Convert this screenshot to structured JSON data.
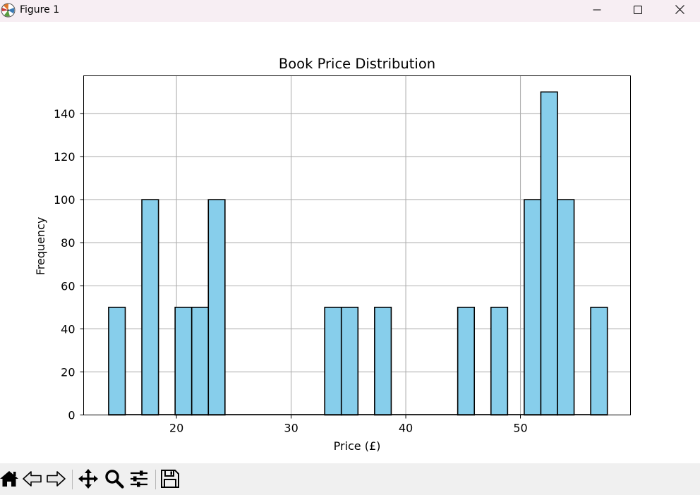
{
  "window": {
    "title": "Figure 1",
    "icons": {
      "app": "matplotlib-icon",
      "minimize": "minimize-icon",
      "maximize": "maximize-icon",
      "close": "close-icon"
    }
  },
  "toolbar": {
    "tools": [
      "home-icon",
      "back-arrow-icon",
      "forward-arrow-icon",
      "pan-icon",
      "zoom-icon",
      "configure-subplots-icon",
      "save-icon"
    ]
  },
  "chart_data": {
    "type": "bar",
    "title": "Book Price Distribution",
    "xlabel": "Price (£)",
    "ylabel": "Frequency",
    "xlim": [
      11.9,
      59.6
    ],
    "ylim": [
      0,
      157.5
    ],
    "xticks": [
      20,
      30,
      40,
      50
    ],
    "yticks": [
      0,
      20,
      40,
      60,
      80,
      100,
      120,
      140
    ],
    "bin_edges": [
      14.08,
      15.53,
      16.98,
      18.43,
      19.88,
      21.33,
      22.78,
      24.23,
      25.68,
      27.13,
      28.58,
      30.03,
      31.48,
      32.93,
      34.38,
      35.83,
      37.28,
      38.73,
      40.18,
      41.63,
      43.08,
      44.53,
      45.98,
      47.43,
      48.88,
      50.33,
      51.78,
      53.23,
      54.68,
      56.13,
      57.58
    ],
    "values": [
      50,
      0,
      100,
      0,
      50,
      50,
      100,
      0,
      0,
      0,
      0,
      0,
      0,
      50,
      50,
      0,
      50,
      0,
      0,
      0,
      0,
      50,
      0,
      50,
      0,
      100,
      150,
      100,
      0,
      50
    ],
    "bar_color": "#87ceeb",
    "edge_color": "#000000",
    "grid": true
  }
}
